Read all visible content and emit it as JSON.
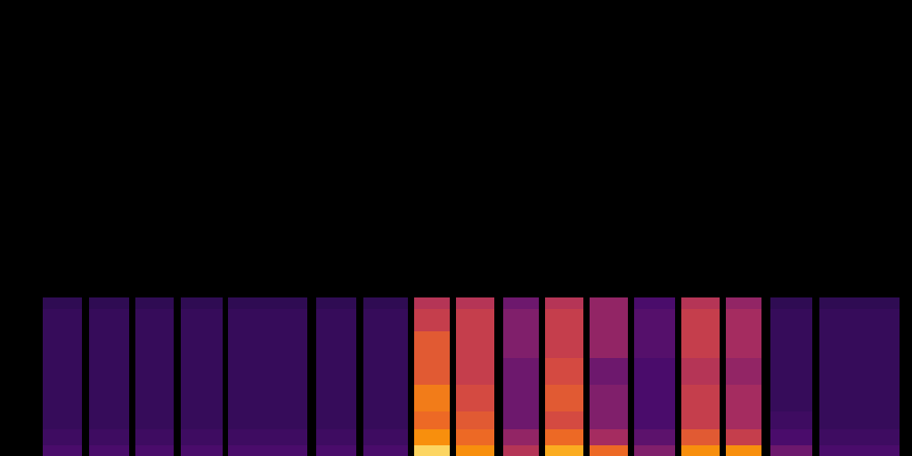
{
  "chart_data": {
    "type": "heatmap",
    "tick_labels": false,
    "xlim": [
      0,
      1024
    ],
    "ylim": [
      0,
      512
    ],
    "color_range": [
      0,
      1
    ],
    "time_bins": [
      [
        48,
        92
      ],
      [
        100,
        145
      ],
      [
        152,
        195
      ],
      [
        203,
        250
      ],
      [
        256,
        345
      ],
      [
        355,
        400
      ],
      [
        408,
        458
      ],
      [
        465,
        505
      ],
      [
        512,
        555
      ],
      [
        565,
        605
      ],
      [
        612,
        655
      ],
      [
        662,
        705
      ],
      [
        712,
        758
      ],
      [
        765,
        808
      ],
      [
        815,
        855
      ],
      [
        865,
        912
      ],
      [
        920,
        1010
      ]
    ],
    "freq_bins": [
      0,
      12,
      30,
      50,
      80,
      110,
      140,
      165,
      178
    ],
    "cells": [
      [
        0.25,
        0.22,
        0.2,
        0.2,
        0.2,
        0.2,
        0.2,
        0.18
      ],
      [
        0.25,
        0.22,
        0.2,
        0.2,
        0.2,
        0.2,
        0.2,
        0.18
      ],
      [
        0.25,
        0.22,
        0.2,
        0.2,
        0.2,
        0.2,
        0.2,
        0.18
      ],
      [
        0.25,
        0.22,
        0.2,
        0.2,
        0.2,
        0.2,
        0.2,
        0.18
      ],
      [
        0.25,
        0.22,
        0.2,
        0.2,
        0.2,
        0.2,
        0.2,
        0.18
      ],
      [
        0.25,
        0.22,
        0.2,
        0.2,
        0.2,
        0.2,
        0.2,
        0.18
      ],
      [
        0.25,
        0.22,
        0.2,
        0.2,
        0.2,
        0.2,
        0.2,
        0.18
      ],
      [
        0.95,
        0.85,
        0.75,
        0.8,
        0.7,
        0.7,
        0.6,
        0.55
      ],
      [
        0.85,
        0.75,
        0.7,
        0.65,
        0.6,
        0.6,
        0.6,
        0.55
      ],
      [
        0.55,
        0.45,
        0.35,
        0.35,
        0.35,
        0.4,
        0.4,
        0.35
      ],
      [
        0.9,
        0.75,
        0.65,
        0.7,
        0.65,
        0.6,
        0.6,
        0.55
      ],
      [
        0.75,
        0.5,
        0.4,
        0.4,
        0.35,
        0.45,
        0.45,
        0.45
      ],
      [
        0.4,
        0.3,
        0.25,
        0.25,
        0.25,
        0.28,
        0.28,
        0.25
      ],
      [
        0.85,
        0.7,
        0.6,
        0.6,
        0.55,
        0.6,
        0.6,
        0.55
      ],
      [
        0.85,
        0.6,
        0.5,
        0.5,
        0.45,
        0.5,
        0.5,
        0.45
      ],
      [
        0.35,
        0.25,
        0.22,
        0.2,
        0.2,
        0.2,
        0.2,
        0.18
      ],
      [
        0.25,
        0.22,
        0.2,
        0.2,
        0.2,
        0.2,
        0.2,
        0.18
      ]
    ]
  }
}
